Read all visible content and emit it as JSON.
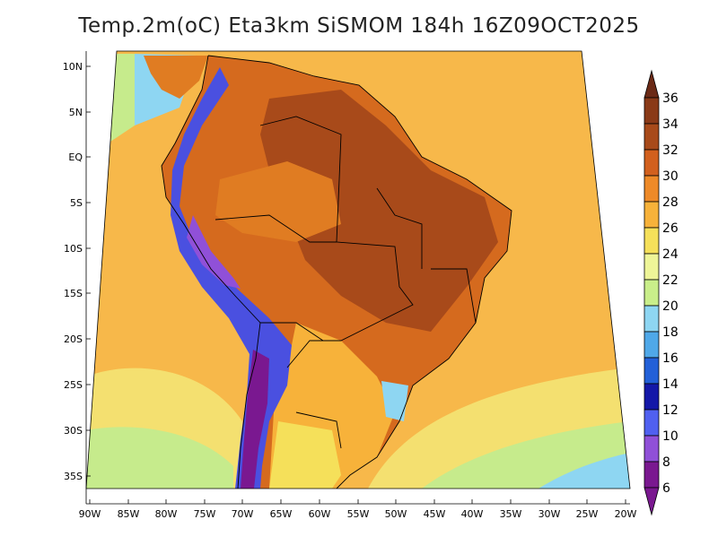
{
  "title": "Temp.2m(oC) Eta3km SiSMOM 184h 16Z09OCT2025",
  "lat_labels": [
    "10N",
    "5N",
    "EQ",
    "5S",
    "10S",
    "15S",
    "20S",
    "25S",
    "30S",
    "35S"
  ],
  "lon_labels": [
    "90W",
    "85W",
    "80W",
    "75W",
    "70W",
    "65W",
    "60W",
    "55W",
    "50W",
    "45W",
    "40W",
    "35W",
    "30W",
    "25W",
    "20W"
  ],
  "colorbar": {
    "labels": [
      "36",
      "34",
      "32",
      "30",
      "28",
      "26",
      "24",
      "22",
      "20",
      "18",
      "16",
      "14",
      "12",
      "10",
      "8",
      "6"
    ],
    "colors": [
      "#6b2a16",
      "#8a3a18",
      "#a84a1a",
      "#d2601e",
      "#ee8a28",
      "#f7b23a",
      "#f5e05a",
      "#eef598",
      "#c9ee8a",
      "#8ed6f2",
      "#4fa8e8",
      "#2260d8",
      "#1418a8",
      "#5060f0",
      "#9050d8",
      "#7a1890"
    ]
  },
  "colors": {
    "ocean_warm": "#f7b84a",
    "ocean_cool": "#f4e070",
    "ocean_cold": "#c6eb8c",
    "land_hot": "#c45a1e",
    "land_warm": "#e0801f",
    "andes": "#4a50e0",
    "andes_cold": "#7a1890"
  }
}
